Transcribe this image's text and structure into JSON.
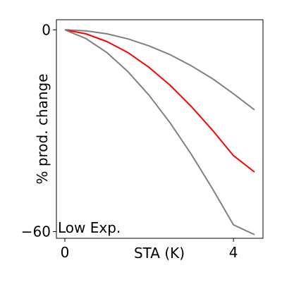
{
  "chart_data": {
    "type": "line",
    "title": "",
    "xlabel": "STA (K)",
    "ylabel": "% prod. change",
    "xlim": [
      -0.2,
      4.7
    ],
    "ylim": [
      -62,
      3
    ],
    "xticks": [
      0,
      4
    ],
    "yticks": [
      0,
      -60
    ],
    "xtick_labels": [
      "0",
      "4"
    ],
    "ytick_labels": [
      "0",
      "−60"
    ],
    "annotation": "Low Exp.",
    "grid": false,
    "series": [
      {
        "color": "#808080",
        "x": [
          0,
          0.5,
          1,
          1.5,
          2,
          2.5,
          3,
          3.5,
          4,
          4.5
        ],
        "y": [
          0,
          -0.3,
          -1.2,
          -2.7,
          -4.8,
          -7.4,
          -10.7,
          -14.5,
          -19.0,
          -23.8
        ]
      },
      {
        "color": "#ff0000",
        "x": [
          0,
          0.5,
          1,
          1.5,
          2,
          2.5,
          3,
          3.5,
          4,
          4.5
        ],
        "y": [
          0,
          -1.2,
          -3.5,
          -6.8,
          -11.2,
          -16.5,
          -22.8,
          -29.8,
          -37.4,
          -42.3
        ]
      },
      {
        "color": "#808080",
        "x": [
          0,
          0.5,
          1,
          1.5,
          2,
          2.5,
          3,
          3.5,
          4,
          4.5
        ],
        "y": [
          0,
          -2.6,
          -6.8,
          -12.5,
          -19.5,
          -27.7,
          -37.0,
          -47.2,
          -58.0,
          -60.9
        ]
      }
    ]
  }
}
